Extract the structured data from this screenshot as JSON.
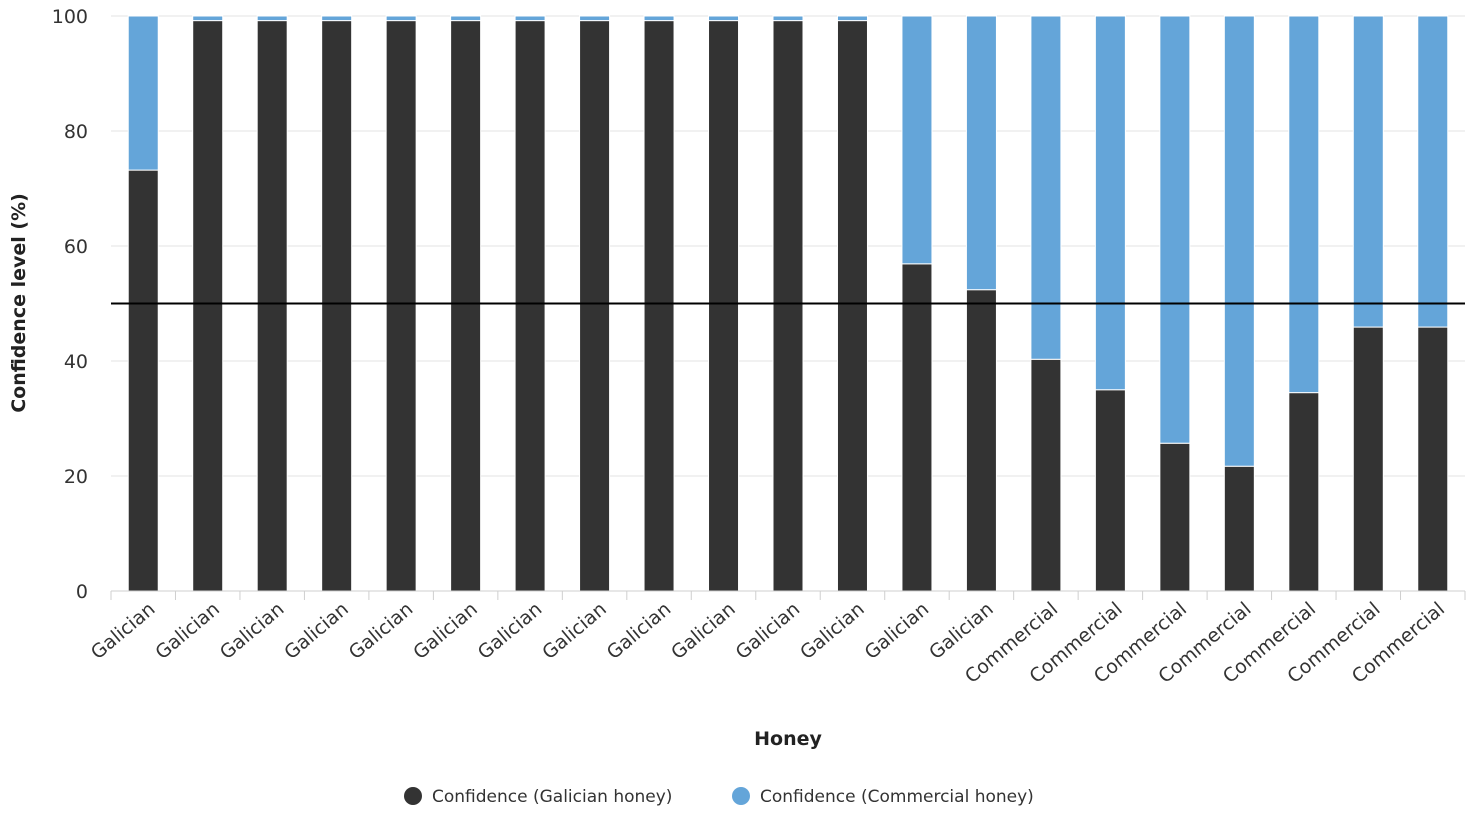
{
  "chart_data": {
    "type": "bar",
    "stacked": true,
    "title": "",
    "xlabel": "Honey",
    "ylabel": "Confidence level (%)",
    "ylim": [
      0,
      100
    ],
    "yticks": [
      0,
      20,
      40,
      60,
      80,
      100
    ],
    "grid": true,
    "reference_line": 50,
    "legend_position": "bottom-center",
    "categories": [
      "Galician",
      "Galician",
      "Galician",
      "Galician",
      "Galician",
      "Galician",
      "Galician",
      "Galician",
      "Galician",
      "Galician",
      "Galician",
      "Galician",
      "Galician",
      "Galician",
      "Commercial",
      "Commercial",
      "Commercial",
      "Commercial",
      "Commercial",
      "Commercial",
      "Commercial"
    ],
    "series": [
      {
        "name": "Confidence (Galician honey)",
        "color": "#333333",
        "values": [
          73.2,
          99.2,
          99.2,
          99.2,
          99.2,
          99.2,
          99.2,
          99.2,
          99.2,
          99.2,
          99.2,
          99.2,
          56.9,
          52.4,
          40.3,
          35.0,
          25.7,
          21.7,
          34.5,
          45.9,
          45.9
        ]
      },
      {
        "name": "Confidence (Commercial honey)",
        "color": "#64a5d9",
        "values": [
          26.8,
          0.8,
          0.8,
          0.8,
          0.8,
          0.8,
          0.8,
          0.8,
          0.8,
          0.8,
          0.8,
          0.8,
          43.1,
          47.6,
          59.7,
          65.0,
          74.3,
          78.3,
          65.5,
          54.1,
          54.1
        ]
      }
    ]
  }
}
